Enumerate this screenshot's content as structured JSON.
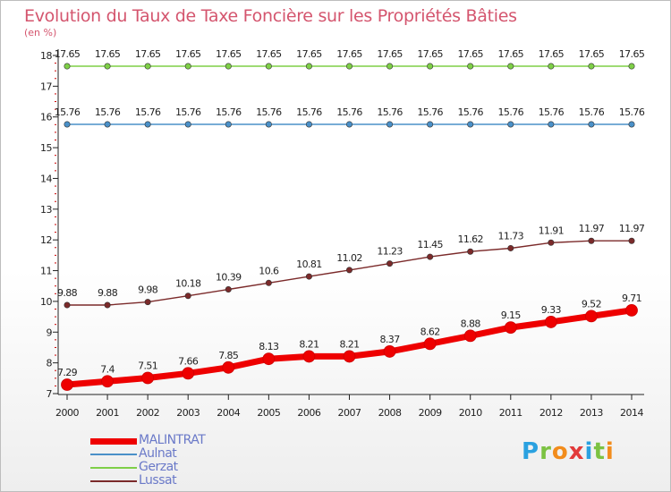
{
  "header": {
    "title": "Evolution du Taux de Taxe Foncière sur les Propriétés Bâties",
    "unit": "(en %)"
  },
  "colors": {
    "title": "#d4556e",
    "axis": "#222222",
    "tick_mark": "#cc0000",
    "legend_text": "#6a79c8"
  },
  "logo": {
    "letters": [
      "P",
      "r",
      "o",
      "x",
      "i",
      "t",
      "i"
    ],
    "colors": [
      "#2aa1e0",
      "#7cc242",
      "#f28c1c",
      "#e23a3a",
      "#2aa1e0",
      "#7cc242",
      "#f28c1c"
    ]
  },
  "chart_data": {
    "type": "line",
    "x": [
      "2000",
      "2001",
      "2002",
      "2003",
      "2004",
      "2005",
      "2006",
      "2007",
      "2008",
      "2009",
      "2010",
      "2011",
      "2012",
      "2013",
      "2014"
    ],
    "ylim": [
      7,
      18
    ],
    "yticks": [
      7,
      8,
      9,
      10,
      11,
      12,
      13,
      14,
      15,
      16,
      17,
      18
    ],
    "grid": false,
    "legend_position": "bottom-left",
    "series": [
      {
        "name": "MALINTRAT",
        "color": "#ee0000",
        "values": [
          7.29,
          7.4,
          7.51,
          7.66,
          7.85,
          8.13,
          8.21,
          8.21,
          8.37,
          8.62,
          8.88,
          9.15,
          9.33,
          9.52,
          9.71
        ],
        "labels": [
          "7.29",
          "7.4",
          "7.51",
          "7.66",
          "7.85",
          "8.13",
          "8.21",
          "8.21",
          "8.37",
          "8.62",
          "8.88",
          "9.15",
          "9.33",
          "9.52",
          "9.71"
        ],
        "emphasis": true
      },
      {
        "name": "Aulnat",
        "color": "#4a90c8",
        "values": [
          15.76,
          15.76,
          15.76,
          15.76,
          15.76,
          15.76,
          15.76,
          15.76,
          15.76,
          15.76,
          15.76,
          15.76,
          15.76,
          15.76,
          15.76
        ],
        "labels": [
          "15.76",
          "15.76",
          "15.76",
          "15.76",
          "15.76",
          "15.76",
          "15.76",
          "15.76",
          "15.76",
          "15.76",
          "15.76",
          "15.76",
          "15.76",
          "15.76",
          "15.76"
        ],
        "emphasis": false
      },
      {
        "name": "Gerzat",
        "color": "#7ecf47",
        "values": [
          17.65,
          17.65,
          17.65,
          17.65,
          17.65,
          17.65,
          17.65,
          17.65,
          17.65,
          17.65,
          17.65,
          17.65,
          17.65,
          17.65,
          17.65
        ],
        "labels": [
          "17.65",
          "17.65",
          "17.65",
          "17.65",
          "17.65",
          "17.65",
          "17.65",
          "17.65",
          "17.65",
          "17.65",
          "17.65",
          "17.65",
          "17.65",
          "17.65",
          "17.65"
        ],
        "emphasis": false
      },
      {
        "name": "Lussat",
        "color": "#7b2a2a",
        "values": [
          9.88,
          9.88,
          9.98,
          10.18,
          10.39,
          10.6,
          10.81,
          11.02,
          11.23,
          11.45,
          11.62,
          11.73,
          11.91,
          11.97,
          11.97
        ],
        "labels": [
          "9.88",
          "9.88",
          "9.98",
          "10.18",
          "10.39",
          "10.6",
          "10.81",
          "11.02",
          "11.23",
          "11.45",
          "11.62",
          "11.73",
          "11.91",
          "11.97",
          "11.97"
        ],
        "emphasis": false
      }
    ]
  }
}
